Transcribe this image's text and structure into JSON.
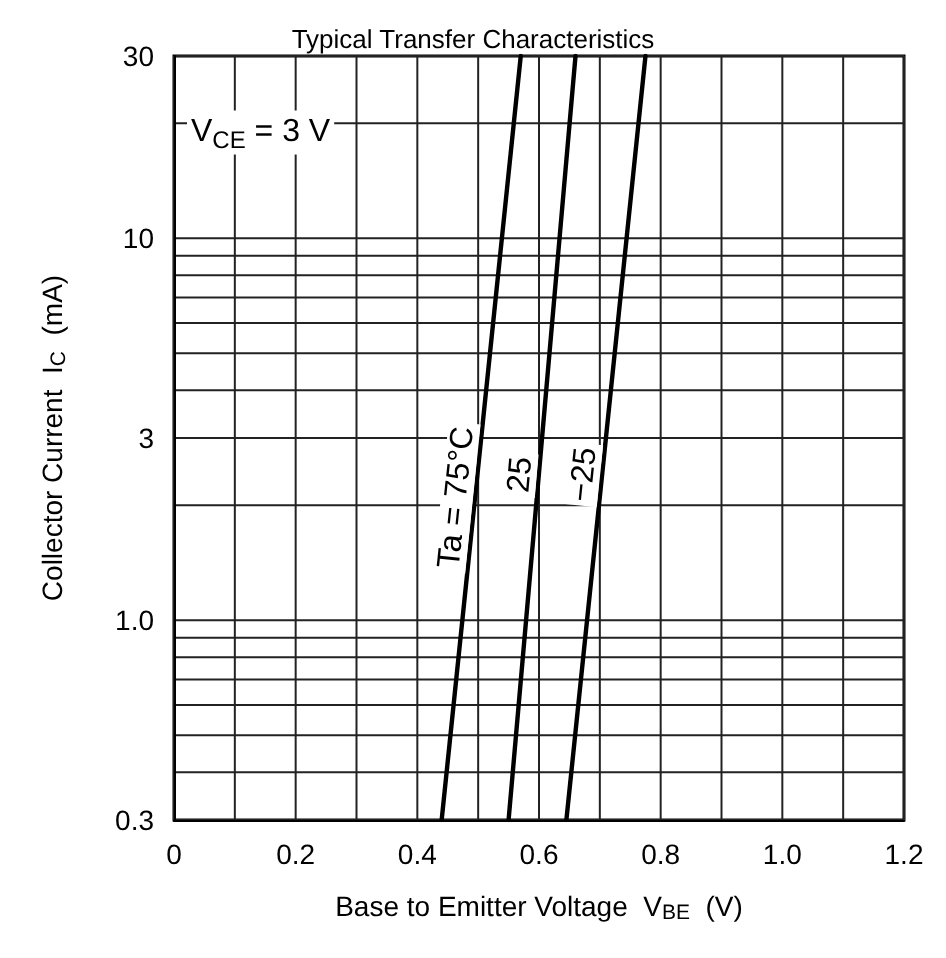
{
  "chart_data": {
    "type": "line",
    "title": "Typical Transfer Characteristics",
    "xlabel": "Base to Emitter Voltage  V$_{BE}$  (V)",
    "ylabel": "Collector Current  I$_{C}$  (mA)",
    "annotations": [
      "V$_{CE}$ = 3 V"
    ],
    "series": [
      {
        "name": "Ta = 75°C",
        "color": "#000000",
        "x": [
          0.44,
          0.57
        ],
        "values": [
          0.3,
          30
        ]
      },
      {
        "name": "25",
        "color": "#000000",
        "x": [
          0.55,
          0.66
        ],
        "values": [
          0.3,
          30
        ]
      },
      {
        "name": "−25",
        "color": "#000000",
        "x": [
          0.645,
          0.775
        ],
        "values": [
          0.3,
          30
        ]
      }
    ],
    "log": "y",
    "xlim": [
      0,
      1.2
    ],
    "ylim": [
      0.3,
      30
    ],
    "xticks": [
      0,
      {
        "value": 0.1,
        "label": null
      },
      {
        "value": 0.2,
        "label": "0.2"
      },
      {
        "value": 0.3,
        "label": null
      },
      {
        "value": 0.4,
        "label": "0.4"
      },
      {
        "value": 0.5,
        "label": null
      },
      {
        "value": 0.6,
        "label": "0.6"
      },
      {
        "value": 0.7,
        "label": null
      },
      {
        "value": 0.8,
        "label": "0.8"
      },
      {
        "value": 0.9,
        "label": null
      },
      {
        "value": 1,
        "label": "1.0"
      },
      {
        "value": 1.1,
        "label": null
      },
      {
        "value": 1.2,
        "label": "1.2"
      }
    ],
    "yticks": [
      0.3,
      {
        "value": 0.4,
        "label": null
      },
      {
        "value": 0.5,
        "label": null
      },
      {
        "value": 0.6,
        "label": null
      },
      {
        "value": 0.7,
        "label": null
      },
      {
        "value": 0.8,
        "label": null
      },
      {
        "value": 0.9,
        "label": null
      },
      {
        "value": 1,
        "label": "1.0"
      },
      {
        "value": 2,
        "label": null
      },
      3,
      {
        "value": 4,
        "label": null
      },
      {
        "value": 5,
        "label": null
      },
      {
        "value": 6,
        "label": null
      },
      {
        "value": 7,
        "label": null
      },
      {
        "value": 8,
        "label": null
      },
      {
        "value": 9,
        "label": null
      },
      10,
      {
        "value": 20,
        "label": null
      },
      30
    ],
    "grid": true,
    "legend": false,
    "marker": "none",
    "line_style": "solid"
  }
}
